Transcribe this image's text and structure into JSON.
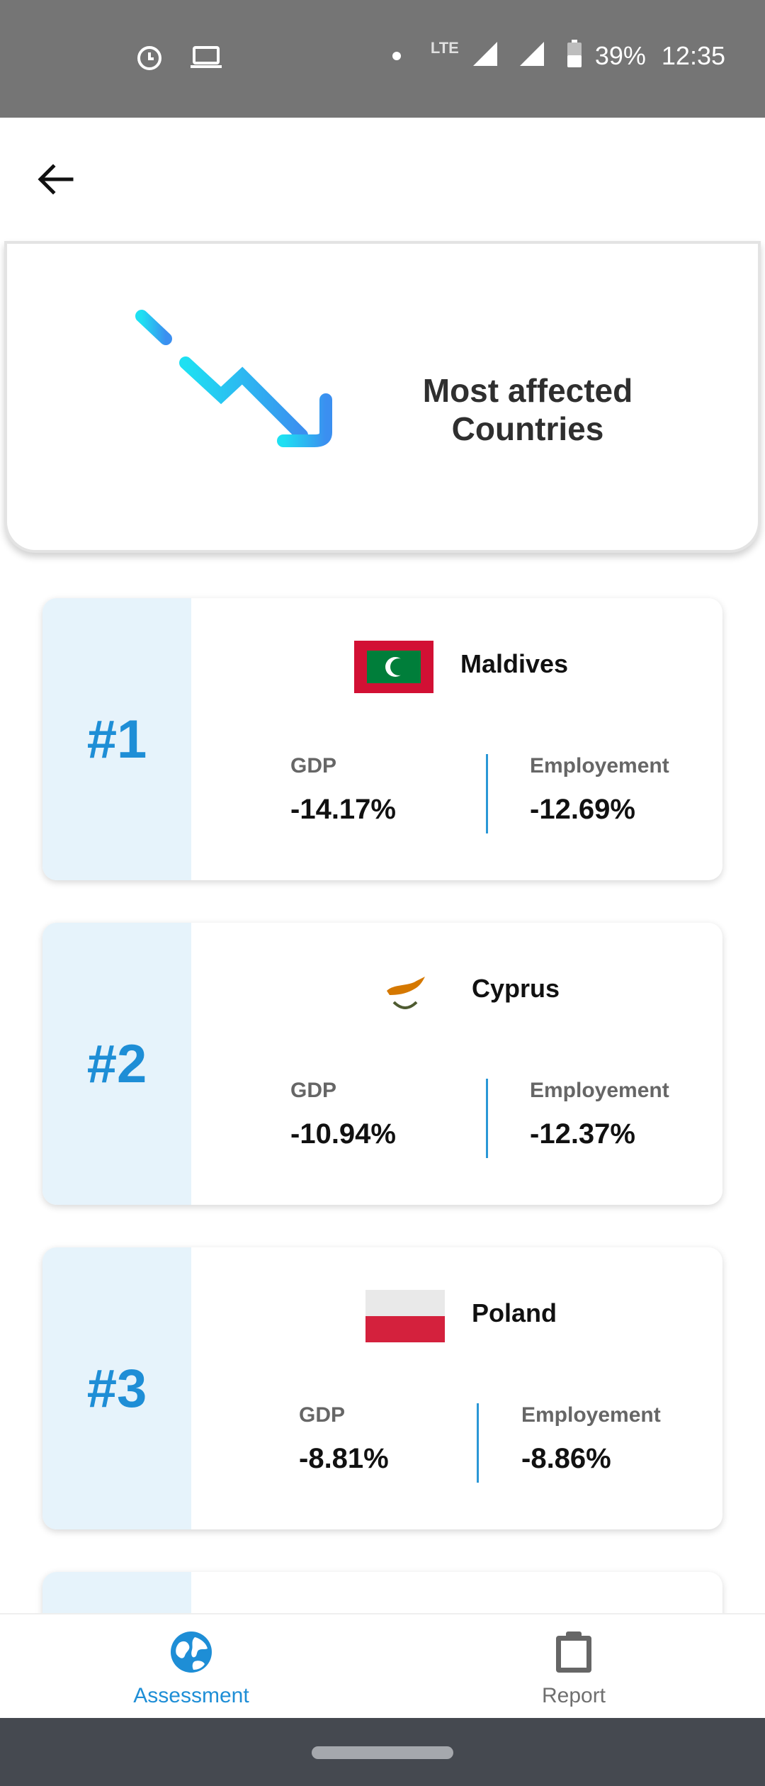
{
  "status_bar": {
    "lte": "LTE",
    "battery": "39%",
    "time": "12:35",
    "icons": [
      "alarm-clock-icon",
      "laptop-icon",
      "notification-dot-icon",
      "signal-icon",
      "signal-icon",
      "battery-icon"
    ]
  },
  "app_bar": {
    "back_icon": "arrow-left-icon"
  },
  "hero": {
    "title_line1": "Most affected",
    "title_line2": "Countries",
    "icon": "chart-decline-icon"
  },
  "labels": {
    "gdp": "GDP",
    "employment": "Employement"
  },
  "countries": [
    {
      "rank": "#1",
      "name": "Maldives",
      "gdp": "-14.17%",
      "employment": "-12.69%",
      "flag": "maldives-flag"
    },
    {
      "rank": "#2",
      "name": "Cyprus",
      "gdp": "-10.94%",
      "employment": "-12.37%",
      "flag": "cyprus-flag"
    },
    {
      "rank": "#3",
      "name": "Poland",
      "gdp": "-8.81%",
      "employment": "-8.86%",
      "flag": "poland-flag"
    }
  ],
  "bottom_nav": {
    "items": [
      {
        "label": "Assessment",
        "icon": "globe-icon",
        "active": true
      },
      {
        "label": "Report",
        "icon": "clipboard-icon",
        "active": false
      }
    ]
  },
  "colors": {
    "accent": "#1e8ed6",
    "rank_panel": "#e6f3fb",
    "status_bar": "#757575",
    "system_nav": "#454950"
  }
}
